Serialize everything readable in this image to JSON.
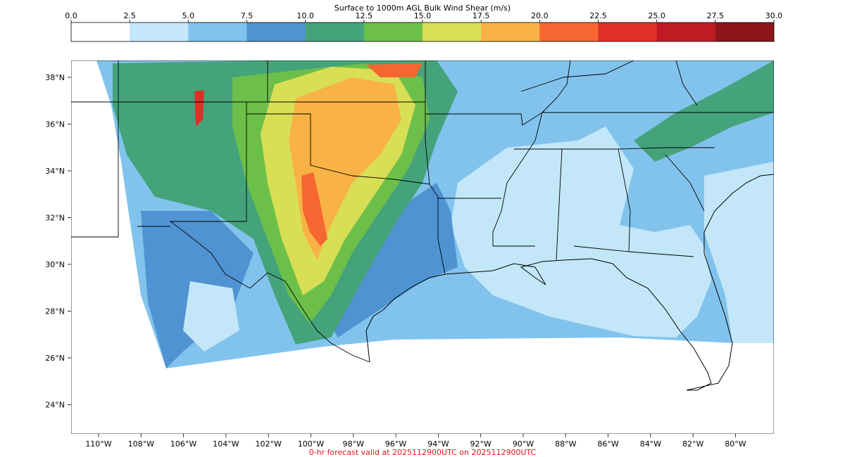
{
  "colorbar": {
    "title": "Surface to 1000m AGL Bulk Wind Shear (m/s)",
    "ticks": [
      "0.0",
      "2.5",
      "5.0",
      "7.5",
      "10.0",
      "12.5",
      "15.0",
      "17.5",
      "20.0",
      "22.5",
      "25.0",
      "27.5",
      "30.0"
    ],
    "colors": [
      "#ffffff",
      "#c3e7f9",
      "#82c3ed",
      "#4f93d2",
      "#44a37a",
      "#6cc04a",
      "#d8df55",
      "#f8b246",
      "#f46730",
      "#df3028",
      "#c01b25",
      "#8e1519"
    ]
  },
  "map": {
    "lon_labels": [
      "110°W",
      "108°W",
      "106°W",
      "104°W",
      "102°W",
      "100°W",
      "98°W",
      "96°W",
      "94°W",
      "92°W",
      "90°W",
      "88°W",
      "86°W",
      "84°W",
      "82°W",
      "80°W"
    ],
    "lat_labels": [
      "38°N",
      "36°N",
      "34°N",
      "32°N",
      "30°N",
      "28°N",
      "26°N",
      "24°N"
    ]
  },
  "footer": {
    "forecast_text": "0-hr forecast valid at 2025112900UTC on 2025112900UTC",
    "text_color": "#e8121b"
  }
}
